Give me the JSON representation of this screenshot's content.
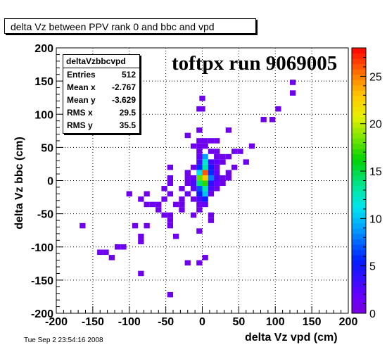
{
  "histogram_title": "delta Vz between PPV rank 0 and bbc and vpd",
  "run_label": "toftpx run 9069005",
  "datestamp": "Tue Sep  2 23:54:16 2008",
  "stats": {
    "name": "deltaVzbbcvpd",
    "rows": [
      {
        "key": "Entries",
        "value": "512"
      },
      {
        "key": "Mean x",
        "value": "-2.767"
      },
      {
        "key": "Mean y",
        "value": "-3.629"
      },
      {
        "key": "RMS x",
        "value": "29.5"
      },
      {
        "key": "RMS y",
        "value": "35.5"
      }
    ]
  },
  "chart_data": {
    "type": "heatmap",
    "title": "delta Vz between PPV rank 0 and bbc and vpd",
    "xlabel": "delta Vz vpd (cm)",
    "ylabel": "delta Vz bbc (cm)",
    "xlim": [
      -200,
      200
    ],
    "ylim": [
      -200,
      200
    ],
    "xticks": [
      -200,
      -150,
      -100,
      -50,
      0,
      50,
      100,
      150,
      200
    ],
    "yticks": [
      -200,
      -150,
      -100,
      -50,
      0,
      50,
      100,
      150,
      200
    ],
    "zlim": [
      0,
      28
    ],
    "zticks": [
      0,
      5,
      10,
      15,
      20,
      25
    ],
    "bin_width": 8,
    "grid": true,
    "cells": [
      [
        124,
        148,
        1
      ],
      [
        124,
        132,
        1
      ],
      [
        0,
        124,
        1
      ],
      [
        0,
        108,
        1
      ],
      [
        -4,
        108,
        1
      ],
      [
        104,
        108,
        1
      ],
      [
        84,
        92,
        1
      ],
      [
        96,
        92,
        1
      ],
      [
        -4,
        76,
        1
      ],
      [
        36,
        76,
        1
      ],
      [
        -20,
        68,
        1
      ],
      [
        -4,
        60,
        1
      ],
      [
        4,
        60,
        1
      ],
      [
        12,
        60,
        1
      ],
      [
        20,
        60,
        1
      ],
      [
        -12,
        52,
        1
      ],
      [
        -4,
        52,
        1
      ],
      [
        4,
        52,
        1
      ],
      [
        68,
        52,
        1
      ],
      [
        -4,
        44,
        1
      ],
      [
        12,
        44,
        1
      ],
      [
        20,
        44,
        1
      ],
      [
        44,
        44,
        1
      ],
      [
        52,
        44,
        1
      ],
      [
        -4,
        36,
        2
      ],
      [
        4,
        36,
        9
      ],
      [
        20,
        36,
        1
      ],
      [
        28,
        36,
        1
      ],
      [
        36,
        36,
        1
      ],
      [
        -4,
        28,
        3
      ],
      [
        4,
        28,
        12
      ],
      [
        12,
        28,
        3
      ],
      [
        20,
        28,
        2
      ],
      [
        28,
        28,
        1
      ],
      [
        60,
        28,
        1
      ],
      [
        -44,
        20,
        1
      ],
      [
        -12,
        20,
        1
      ],
      [
        -4,
        20,
        6
      ],
      [
        4,
        20,
        13
      ],
      [
        12,
        20,
        5
      ],
      [
        20,
        20,
        1
      ],
      [
        44,
        20,
        1
      ],
      [
        -20,
        12,
        1
      ],
      [
        -4,
        12,
        11
      ],
      [
        4,
        12,
        26
      ],
      [
        12,
        12,
        6
      ],
      [
        20,
        12,
        2
      ],
      [
        36,
        12,
        1
      ],
      [
        -44,
        4,
        1
      ],
      [
        -20,
        4,
        1
      ],
      [
        -12,
        4,
        2
      ],
      [
        -4,
        4,
        18
      ],
      [
        4,
        4,
        23
      ],
      [
        12,
        4,
        8
      ],
      [
        20,
        4,
        3
      ],
      [
        28,
        4,
        1
      ],
      [
        36,
        4,
        1
      ],
      [
        -44,
        -4,
        1
      ],
      [
        -20,
        -4,
        1
      ],
      [
        -12,
        -4,
        3
      ],
      [
        -4,
        -4,
        14
      ],
      [
        4,
        -4,
        17
      ],
      [
        12,
        -4,
        4
      ],
      [
        20,
        -4,
        2
      ],
      [
        28,
        -4,
        1
      ],
      [
        -52,
        -12,
        1
      ],
      [
        -28,
        -12,
        1
      ],
      [
        -12,
        -12,
        2
      ],
      [
        -4,
        -12,
        7
      ],
      [
        4,
        -12,
        13
      ],
      [
        12,
        -12,
        3
      ],
      [
        20,
        -12,
        1
      ],
      [
        -100,
        -20,
        1
      ],
      [
        -76,
        -20,
        1
      ],
      [
        -44,
        -20,
        1
      ],
      [
        -20,
        -20,
        2
      ],
      [
        -4,
        -20,
        5
      ],
      [
        4,
        -20,
        10
      ],
      [
        12,
        -20,
        1
      ],
      [
        -84,
        -28,
        1
      ],
      [
        -52,
        -28,
        1
      ],
      [
        -28,
        -28,
        1
      ],
      [
        -12,
        -28,
        1
      ],
      [
        -4,
        -28,
        3
      ],
      [
        4,
        -28,
        5
      ],
      [
        -76,
        -36,
        1
      ],
      [
        -68,
        -36,
        1
      ],
      [
        -60,
        -36,
        1
      ],
      [
        -36,
        -36,
        1
      ],
      [
        -28,
        -36,
        1
      ],
      [
        -4,
        -36,
        1
      ],
      [
        4,
        -36,
        2
      ],
      [
        -60,
        -44,
        1
      ],
      [
        -28,
        -44,
        1
      ],
      [
        -4,
        -44,
        1
      ],
      [
        -52,
        -52,
        1
      ],
      [
        -44,
        -52,
        1
      ],
      [
        -12,
        -52,
        1
      ],
      [
        12,
        -52,
        1
      ],
      [
        -44,
        -60,
        1
      ],
      [
        12,
        -60,
        1
      ],
      [
        -92,
        -68,
        1
      ],
      [
        -76,
        -68,
        1
      ],
      [
        -44,
        -68,
        1
      ],
      [
        -4,
        -76,
        1
      ],
      [
        -84,
        -84,
        1
      ],
      [
        -36,
        -84,
        1
      ],
      [
        -84,
        -92,
        1
      ],
      [
        -116,
        -100,
        1
      ],
      [
        -108,
        -100,
        1
      ],
      [
        -132,
        -108,
        1
      ],
      [
        -140,
        -108,
        1
      ],
      [
        -124,
        -116,
        1
      ],
      [
        4,
        -116,
        1
      ],
      [
        -20,
        -124,
        1
      ],
      [
        -4,
        -124,
        1
      ],
      [
        -84,
        -140,
        1
      ],
      [
        -44,
        -172,
        1
      ],
      [
        -164,
        -68,
        1
      ]
    ]
  }
}
